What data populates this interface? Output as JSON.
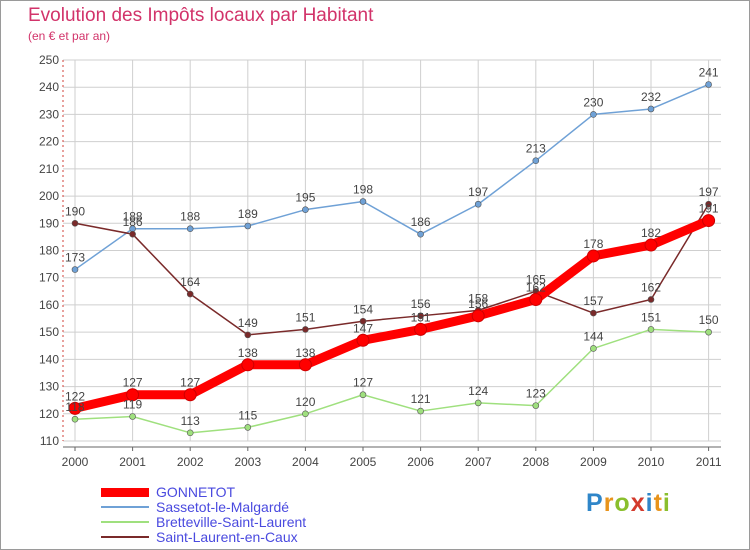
{
  "title": "Evolution des Impôts locaux par Habitant",
  "subtitle": "(en € et par an)",
  "logo_text": "Proxiti",
  "chart_data": {
    "type": "line",
    "title": "Evolution des Impôts locaux par Habitant",
    "subtitle": "(en € et par an)",
    "x": [
      "2000",
      "2001",
      "2002",
      "2003",
      "2004",
      "2005",
      "2006",
      "2007",
      "2008",
      "2009",
      "2010",
      "2011"
    ],
    "y_ticks": [
      110,
      120,
      130,
      140,
      150,
      160,
      170,
      180,
      190,
      200,
      210,
      220,
      230,
      240,
      250
    ],
    "ylim": [
      110,
      250
    ],
    "grid": true,
    "legend_position": "bottom-left",
    "series": [
      {
        "name": "GONNETOT",
        "color": "#ff0000",
        "values": [
          122,
          127,
          127,
          138,
          138,
          147,
          151,
          156,
          162,
          178,
          182,
          191
        ]
      },
      {
        "name": "Sassetot-le-Malgardé",
        "color": "#6fa1d6",
        "values": [
          173,
          188,
          188,
          189,
          195,
          198,
          186,
          197,
          213,
          230,
          232,
          241
        ]
      },
      {
        "name": "Bretteville-Saint-Laurent",
        "color": "#9fe07e",
        "values": [
          118,
          119,
          113,
          115,
          120,
          127,
          121,
          124,
          123,
          144,
          151,
          150
        ]
      },
      {
        "name": "Saint-Laurent-en-Caux",
        "color": "#7a2a2a",
        "values": [
          190,
          186,
          164,
          149,
          151,
          154,
          156,
          158,
          165,
          157,
          162,
          197
        ]
      }
    ]
  }
}
